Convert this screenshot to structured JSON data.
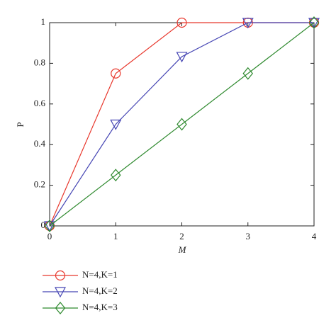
{
  "chart_data": {
    "type": "line",
    "x_label": "M",
    "y_label": "P",
    "x": [
      0,
      1,
      2,
      3,
      4
    ],
    "series": [
      {
        "name": "N=4,K=1",
        "color": "#e8372c",
        "marker": "circle",
        "values": [
          0,
          0.75,
          1,
          1,
          1
        ]
      },
      {
        "name": "N=4,K=2",
        "color": "#4646b4",
        "marker": "triangle-down",
        "values": [
          0,
          0.5,
          0.833,
          1,
          1
        ]
      },
      {
        "name": "N=4,K=3",
        "color": "#2f8a2f",
        "marker": "diamond",
        "values": [
          0,
          0.25,
          0.5,
          0.75,
          1
        ]
      }
    ],
    "xlim": [
      0,
      4
    ],
    "xticks": [
      0,
      1,
      2,
      3,
      4
    ],
    "ylim": [
      0,
      1
    ],
    "yticks": [
      0,
      0.2,
      0.4,
      0.6,
      0.8,
      1
    ],
    "grid": false,
    "legend": "bottom-left"
  }
}
